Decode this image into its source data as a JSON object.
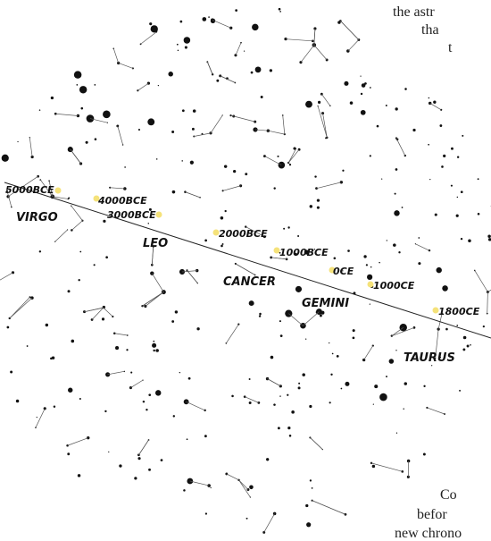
{
  "epochs": [
    "5000BCE",
    "4000BCE",
    "3000BCE",
    "2000BCE",
    "1000BCE",
    "0CE",
    "1000CE",
    "1800CE"
  ],
  "constellations": [
    "VIRGO",
    "LEO",
    "CANCER",
    "GEMINI",
    "TAURUS"
  ],
  "text_fragments": [
    "the astr",
    "tha",
    "t",
    "Co",
    "befor",
    "new chrono"
  ]
}
